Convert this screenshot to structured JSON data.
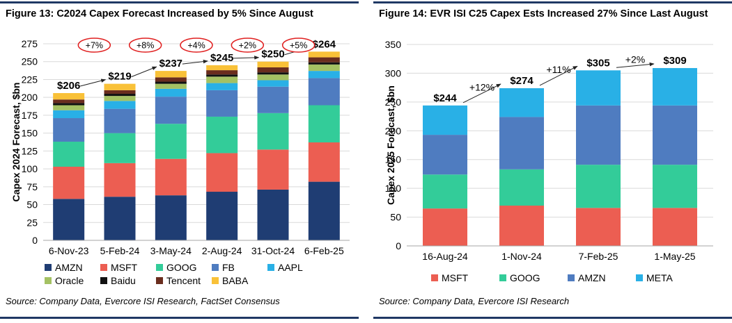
{
  "panels": {
    "left": {
      "title": "Figure 13: C2024 Capex Forecast Increased by 5% Since August",
      "source": "Source: Company Data, Evercore ISI Research, FactSet Consensus"
    },
    "right": {
      "title": "Figure 14: EVR ISI C25 Capex Ests Increased 27% Since Last August",
      "source": "Source: Company Data, Evercore ISI Research"
    }
  },
  "chart_data": [
    {
      "type": "bar",
      "stacked": true,
      "title": "Figure 13: C2024 Capex Forecast Increased by 5% Since August",
      "xlabel": "",
      "ylabel": "Capex 2024 Forecast, $bn",
      "ylim": [
        0,
        275
      ],
      "yticks": [
        0,
        25,
        50,
        75,
        100,
        125,
        150,
        175,
        200,
        225,
        250,
        275
      ],
      "grid": true,
      "legend": "bottom",
      "categories": [
        "6-Nov-23",
        "5-Feb-24",
        "3-May-24",
        "2-Aug-24",
        "31-Oct-24",
        "6-Feb-25"
      ],
      "series": [
        {
          "name": "AMZN",
          "color": "#1f3d73",
          "values": [
            58,
            61,
            63,
            68,
            71,
            82
          ]
        },
        {
          "name": "MSFT",
          "color": "#ec5e52",
          "values": [
            45,
            47,
            51,
            54,
            56,
            55
          ]
        },
        {
          "name": "GOOG",
          "color": "#33cc99",
          "values": [
            35,
            42,
            49,
            51,
            51,
            52
          ]
        },
        {
          "name": "FB",
          "color": "#4f7cc0",
          "values": [
            33,
            34,
            38,
            37,
            37,
            38
          ]
        },
        {
          "name": "AAPL",
          "color": "#29b0e6",
          "values": [
            11,
            11,
            11,
            10,
            9,
            10
          ]
        },
        {
          "name": "Oracle",
          "color": "#a4c163",
          "values": [
            7,
            7,
            7,
            9,
            8,
            9
          ]
        },
        {
          "name": "Baidu",
          "color": "#111111",
          "values": [
            3,
            3,
            3,
            3,
            3,
            3
          ]
        },
        {
          "name": "Tencent",
          "color": "#6a2d1e",
          "values": [
            5,
            5,
            6,
            6,
            7,
            7
          ]
        },
        {
          "name": "BABA",
          "color": "#f9c138",
          "values": [
            9,
            9,
            9,
            7,
            8,
            8
          ]
        }
      ],
      "totals": [
        "$206",
        "$219",
        "$237",
        "$245",
        "$250",
        "$264"
      ],
      "total_values": [
        206,
        219,
        237,
        245,
        250,
        264
      ],
      "changes": [
        "+7%",
        "+8%",
        "+4%",
        "+2%",
        "+5%"
      ]
    },
    {
      "type": "bar",
      "stacked": true,
      "title": "Figure 14: EVR ISI C25 Capex Ests Increased 27% Since Last August",
      "xlabel": "",
      "ylabel": "Capex 2025 Forecast, $bn",
      "ylim": [
        0,
        350
      ],
      "yticks": [
        0,
        50,
        100,
        150,
        200,
        250,
        300,
        350
      ],
      "grid": true,
      "legend": "bottom",
      "categories": [
        "16-Aug-24",
        "1-Nov-24",
        "7-Feb-25",
        "1-May-25"
      ],
      "series": [
        {
          "name": "MSFT",
          "color": "#ec5e52",
          "values": [
            65,
            70,
            66,
            66
          ]
        },
        {
          "name": "GOOG",
          "color": "#33cc99",
          "values": [
            59,
            63,
            75,
            75
          ]
        },
        {
          "name": "AMZN",
          "color": "#4f7cc0",
          "values": [
            69,
            91,
            103,
            103
          ]
        },
        {
          "name": "META",
          "color": "#29b0e6",
          "values": [
            51,
            50,
            61,
            65
          ]
        }
      ],
      "totals": [
        "$244",
        "$274",
        "$305",
        "$309"
      ],
      "total_values": [
        244,
        274,
        305,
        309
      ],
      "changes": [
        "+12%",
        "+11%",
        "+2%"
      ]
    }
  ]
}
